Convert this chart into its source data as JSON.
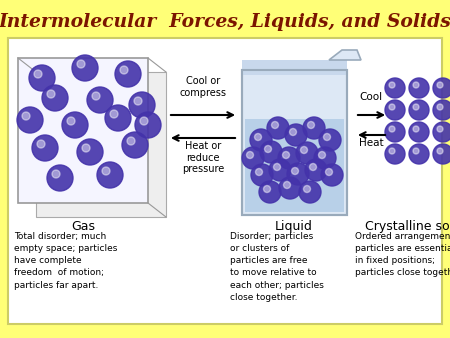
{
  "title": "Intermolecular  Forces, Liquids, and Solids",
  "title_color": "#7B1500",
  "title_fontsize": 13.5,
  "background_color": "#FFFF77",
  "panel_facecolor": "#FFFFFF",
  "panel_edgecolor": "#CCCC66",
  "state_labels": [
    "Gas",
    "Liquid",
    "Crystalline solid"
  ],
  "descriptions": [
    "Total disorder; much\nempty space; particles\nhave complete\nfreedom  of motion;\nparticles far apart.",
    "Disorder; particles\nor clusters of\nparticles are free\nto move relative to\neach other; particles\nclose together.",
    "Ordered arrangement;\nparticles are essentially\nin fixed positions;\nparticles close together."
  ],
  "arrow_label_left_top": "Cool or\ncompress",
  "arrow_label_left_bottom": "Heat or\nreduce\npressure",
  "arrow_label_right_top": "Cool",
  "arrow_label_right_bottom": "Heat",
  "particle_color": "#4433AA",
  "particle_alpha": 0.9
}
